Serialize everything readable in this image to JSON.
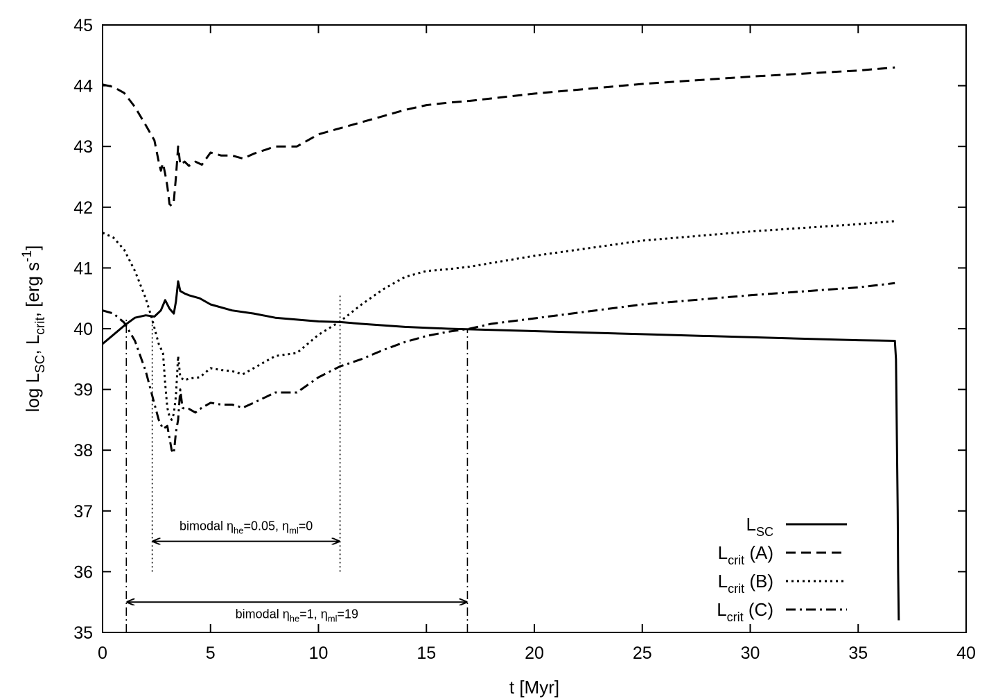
{
  "chart_data": {
    "type": "line",
    "xlabel": "t [Myr]",
    "ylabel": {
      "text_log": "log L",
      "sub_sc": "SC",
      "text_comma": ", L",
      "sub_crit": "crit",
      "text_units": ", [erg s",
      "sup_units": "-1",
      "text_close": "]"
    },
    "xlim": [
      0,
      40
    ],
    "ylim": [
      35,
      45
    ],
    "xticks": [
      0,
      5,
      10,
      15,
      20,
      25,
      30,
      35,
      40
    ],
    "yticks": [
      35,
      36,
      37,
      38,
      39,
      40,
      41,
      42,
      43,
      44,
      45
    ],
    "grid": false,
    "legend_position": "bottom-right",
    "series": [
      {
        "id": "lsc",
        "label_main": "L",
        "label_sub": "SC",
        "label_suffix": "",
        "style": "solid",
        "color": "#000000",
        "points": [
          [
            0,
            39.75
          ],
          [
            0.5,
            39.9
          ],
          [
            1,
            40.05
          ],
          [
            1.5,
            40.18
          ],
          [
            2,
            40.22
          ],
          [
            2.4,
            40.2
          ],
          [
            2.7,
            40.3
          ],
          [
            2.9,
            40.47
          ],
          [
            3.1,
            40.33
          ],
          [
            3.3,
            40.25
          ],
          [
            3.4,
            40.45
          ],
          [
            3.5,
            40.78
          ],
          [
            3.6,
            40.62
          ],
          [
            3.8,
            40.58
          ],
          [
            4,
            40.55
          ],
          [
            4.5,
            40.5
          ],
          [
            5,
            40.4
          ],
          [
            6,
            40.3
          ],
          [
            7,
            40.25
          ],
          [
            8,
            40.18
          ],
          [
            9,
            40.15
          ],
          [
            10,
            40.12
          ],
          [
            11,
            40.11
          ],
          [
            12,
            40.08
          ],
          [
            14,
            40.03
          ],
          [
            16,
            40.0
          ],
          [
            17,
            39.99
          ],
          [
            20,
            39.96
          ],
          [
            25,
            39.91
          ],
          [
            30,
            39.86
          ],
          [
            35,
            39.81
          ],
          [
            36.7,
            39.8
          ],
          [
            36.75,
            39.5
          ],
          [
            36.8,
            38.0
          ],
          [
            36.83,
            37.0
          ],
          [
            36.85,
            36.0
          ],
          [
            36.88,
            35.2
          ]
        ]
      },
      {
        "id": "lcritA",
        "label_main": "L",
        "label_sub": "crit",
        "label_suffix": " (A)",
        "style": "dashed",
        "color": "#000000",
        "points": [
          [
            0,
            44.02
          ],
          [
            0.5,
            43.98
          ],
          [
            1,
            43.88
          ],
          [
            1.5,
            43.65
          ],
          [
            2,
            43.35
          ],
          [
            2.4,
            43.1
          ],
          [
            2.6,
            42.75
          ],
          [
            2.7,
            42.6
          ],
          [
            2.8,
            42.72
          ],
          [
            2.9,
            42.55
          ],
          [
            3.0,
            42.35
          ],
          [
            3.1,
            42.05
          ],
          [
            3.2,
            42.02
          ],
          [
            3.3,
            42.1
          ],
          [
            3.4,
            42.5
          ],
          [
            3.5,
            43.0
          ],
          [
            3.6,
            42.7
          ],
          [
            3.8,
            42.75
          ],
          [
            4.0,
            42.68
          ],
          [
            4.3,
            42.75
          ],
          [
            4.6,
            42.7
          ],
          [
            5,
            42.9
          ],
          [
            5.5,
            42.85
          ],
          [
            6,
            42.85
          ],
          [
            6.5,
            42.8
          ],
          [
            7,
            42.88
          ],
          [
            8,
            43.0
          ],
          [
            9,
            43.0
          ],
          [
            10,
            43.2
          ],
          [
            11,
            43.3
          ],
          [
            12,
            43.4
          ],
          [
            13,
            43.5
          ],
          [
            14,
            43.6
          ],
          [
            15,
            43.68
          ],
          [
            16,
            43.72
          ],
          [
            17,
            43.75
          ],
          [
            20,
            43.87
          ],
          [
            25,
            44.03
          ],
          [
            30,
            44.15
          ],
          [
            35,
            44.25
          ],
          [
            36.7,
            44.3
          ]
        ]
      },
      {
        "id": "lcritB",
        "label_main": "L",
        "label_sub": "crit",
        "label_suffix": " (B)",
        "style": "dotted",
        "color": "#000000",
        "points": [
          [
            0,
            41.58
          ],
          [
            0.5,
            41.5
          ],
          [
            1,
            41.3
          ],
          [
            1.5,
            40.95
          ],
          [
            2,
            40.5
          ],
          [
            2.3,
            40.15
          ],
          [
            2.6,
            39.75
          ],
          [
            2.8,
            39.6
          ],
          [
            2.9,
            39.1
          ],
          [
            3.0,
            38.7
          ],
          [
            3.1,
            38.55
          ],
          [
            3.2,
            38.5
          ],
          [
            3.3,
            38.6
          ],
          [
            3.4,
            38.9
          ],
          [
            3.5,
            39.55
          ],
          [
            3.6,
            39.2
          ],
          [
            3.8,
            39.15
          ],
          [
            4,
            39.18
          ],
          [
            4.5,
            39.2
          ],
          [
            5,
            39.35
          ],
          [
            5.5,
            39.32
          ],
          [
            6,
            39.3
          ],
          [
            6.5,
            39.25
          ],
          [
            7,
            39.35
          ],
          [
            8,
            39.55
          ],
          [
            9,
            39.6
          ],
          [
            10,
            39.9
          ],
          [
            11,
            40.12
          ],
          [
            12,
            40.4
          ],
          [
            13,
            40.65
          ],
          [
            14,
            40.85
          ],
          [
            15,
            40.95
          ],
          [
            16,
            40.98
          ],
          [
            17,
            41.02
          ],
          [
            20,
            41.2
          ],
          [
            25,
            41.45
          ],
          [
            30,
            41.6
          ],
          [
            35,
            41.72
          ],
          [
            36.7,
            41.77
          ]
        ]
      },
      {
        "id": "lcritC",
        "label_main": "L",
        "label_sub": "crit",
        "label_suffix": " (C)",
        "style": "dashdot",
        "color": "#000000",
        "points": [
          [
            0,
            40.3
          ],
          [
            0.5,
            40.25
          ],
          [
            1,
            40.1
          ],
          [
            1.5,
            39.8
          ],
          [
            2,
            39.3
          ],
          [
            2.3,
            38.9
          ],
          [
            2.6,
            38.5
          ],
          [
            2.8,
            38.35
          ],
          [
            3.0,
            38.4
          ],
          [
            3.1,
            38.2
          ],
          [
            3.2,
            38.0
          ],
          [
            3.3,
            37.95
          ],
          [
            3.4,
            38.3
          ],
          [
            3.5,
            38.5
          ],
          [
            3.6,
            39.0
          ],
          [
            3.7,
            38.7
          ],
          [
            3.8,
            38.68
          ],
          [
            4,
            38.68
          ],
          [
            4.3,
            38.62
          ],
          [
            4.6,
            38.7
          ],
          [
            5,
            38.78
          ],
          [
            5.5,
            38.75
          ],
          [
            6,
            38.75
          ],
          [
            6.5,
            38.7
          ],
          [
            7,
            38.78
          ],
          [
            8,
            38.95
          ],
          [
            9,
            38.95
          ],
          [
            10,
            39.2
          ],
          [
            11,
            39.38
          ],
          [
            12,
            39.5
          ],
          [
            13,
            39.65
          ],
          [
            14,
            39.78
          ],
          [
            15,
            39.88
          ],
          [
            16,
            39.95
          ],
          [
            17,
            40.0
          ],
          [
            18,
            40.08
          ],
          [
            20,
            40.17
          ],
          [
            25,
            40.4
          ],
          [
            30,
            40.55
          ],
          [
            35,
            40.68
          ],
          [
            36.7,
            40.75
          ]
        ]
      }
    ],
    "annotations": [
      {
        "id": "bimodal-b",
        "text_prefix": "bimodal ",
        "eta1": "η",
        "eta1_sub": "he",
        "mid": "=0.05, ",
        "eta2": "η",
        "eta2_sub": "ml",
        "suffix": "=0",
        "x_start": 2.3,
        "x_end": 11.0,
        "arrow_y": 36.5,
        "label_y": 36.75,
        "vline_style": "dotted",
        "vline_ymin": 36.0,
        "vlines": [
          {
            "x": 2.3,
            "ymax": 40.2
          },
          {
            "x": 11.0,
            "ymax": 40.55
          }
        ]
      },
      {
        "id": "bimodal-c",
        "text_prefix": "bimodal ",
        "eta1": "η",
        "eta1_sub": "he",
        "mid": "=1, ",
        "eta2": "η",
        "eta2_sub": "ml",
        "suffix": "=19",
        "x_start": 1.1,
        "x_end": 16.9,
        "arrow_y": 35.5,
        "label_y": 35.3,
        "vline_style": "dashdot",
        "vline_ymin": 35.0,
        "vlines": [
          {
            "x": 1.1,
            "ymax": 40.2
          },
          {
            "x": 16.9,
            "ymax": 40.0
          }
        ]
      }
    ]
  }
}
